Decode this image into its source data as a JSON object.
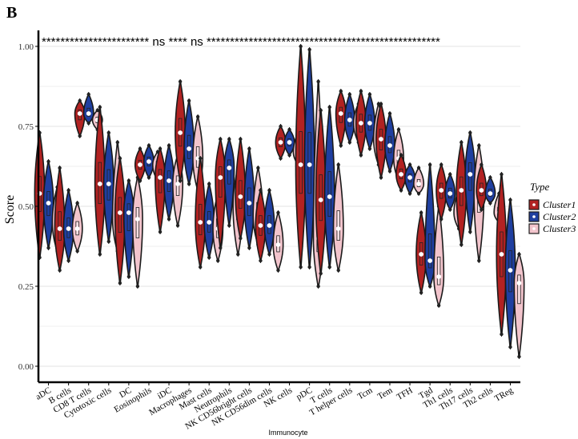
{
  "panel_label": "B",
  "chart_data": {
    "type": "violin",
    "xlabel": "Immunocyte",
    "ylabel": "Score",
    "ylim": [
      0,
      1
    ],
    "yticks": [
      "0.00",
      "0.25",
      "0.50",
      "0.75",
      "1.00"
    ],
    "grid": true,
    "legend": {
      "title": "Type",
      "position": "right"
    },
    "significance_text": "*********************** ns **** ns **************************************************",
    "categories": [
      "aDC",
      "B cells",
      "CD8 T cells",
      "Cytotoxic cells",
      "DC",
      "Eosinophils",
      "iDC",
      "Macrophages",
      "Mast cells",
      "Neutrophils",
      "NK CD56bright cells",
      "NK CD56dim cells",
      "NK cells",
      "pDC",
      "T cells",
      "T helper cells",
      "Tcm",
      "Tem",
      "TFH",
      "Tgd",
      "Th1 cells",
      "Th17 cells",
      "Th2 cells",
      "TReg"
    ],
    "series": [
      {
        "name": "Cluster1",
        "color": "#B22222",
        "median": [
          0.54,
          0.43,
          0.79,
          0.57,
          0.48,
          0.63,
          0.59,
          0.73,
          0.45,
          0.59,
          0.53,
          0.44,
          0.7,
          0.63,
          0.52,
          0.79,
          0.76,
          0.71,
          0.6,
          0.35,
          0.55,
          0.55,
          0.55,
          0.35
        ],
        "min": [
          0.34,
          0.3,
          0.72,
          0.35,
          0.26,
          0.58,
          0.42,
          0.58,
          0.31,
          0.37,
          0.4,
          0.33,
          0.65,
          0.31,
          0.29,
          0.69,
          0.66,
          0.59,
          0.55,
          0.23,
          0.46,
          0.38,
          0.49,
          0.1
        ],
        "max": [
          0.73,
          0.62,
          0.83,
          0.81,
          0.65,
          0.68,
          0.68,
          0.89,
          0.65,
          0.71,
          0.71,
          0.55,
          0.75,
          1.0,
          0.8,
          0.86,
          0.86,
          0.82,
          0.66,
          0.48,
          0.63,
          0.7,
          0.63,
          0.6
        ]
      },
      {
        "name": "Cluster2",
        "color": "#1F3FA0",
        "median": [
          0.51,
          0.43,
          0.79,
          0.57,
          0.48,
          0.64,
          0.58,
          0.68,
          0.45,
          0.62,
          0.51,
          0.44,
          0.7,
          0.63,
          0.53,
          0.77,
          0.76,
          0.69,
          0.59,
          0.33,
          0.54,
          0.6,
          0.54,
          0.3
        ],
        "min": [
          0.37,
          0.33,
          0.76,
          0.39,
          0.28,
          0.59,
          0.46,
          0.57,
          0.34,
          0.44,
          0.37,
          0.35,
          0.66,
          0.31,
          0.31,
          0.7,
          0.68,
          0.61,
          0.54,
          0.25,
          0.49,
          0.42,
          0.51,
          0.06
        ],
        "max": [
          0.64,
          0.55,
          0.85,
          0.73,
          0.58,
          0.69,
          0.69,
          0.83,
          0.57,
          0.71,
          0.68,
          0.55,
          0.74,
          0.99,
          0.81,
          0.85,
          0.85,
          0.79,
          0.63,
          0.63,
          0.6,
          0.73,
          0.59,
          0.52
        ]
      },
      {
        "name": "Cluster3",
        "color": "#F2C4CC",
        "median": [
          0.45,
          0.43,
          0.77,
          0.46,
          0.46,
          0.63,
          0.57,
          0.65,
          0.43,
          0.5,
          0.47,
          0.38,
          0.67,
          0.4,
          0.43,
          0.76,
          0.71,
          0.65,
          0.57,
          0.28,
          0.48,
          0.54,
          0.48,
          0.26
        ],
        "min": [
          0.36,
          0.36,
          0.74,
          0.36,
          0.25,
          0.58,
          0.44,
          0.55,
          0.33,
          0.35,
          0.38,
          0.3,
          0.63,
          0.25,
          0.3,
          0.7,
          0.63,
          0.58,
          0.54,
          0.19,
          0.43,
          0.33,
          0.45,
          0.03
        ],
        "max": [
          0.56,
          0.51,
          0.8,
          0.7,
          0.59,
          0.67,
          0.66,
          0.78,
          0.54,
          0.62,
          0.62,
          0.48,
          0.73,
          0.89,
          0.63,
          0.82,
          0.82,
          0.74,
          0.62,
          0.5,
          0.55,
          0.69,
          0.54,
          0.35
        ]
      }
    ]
  }
}
